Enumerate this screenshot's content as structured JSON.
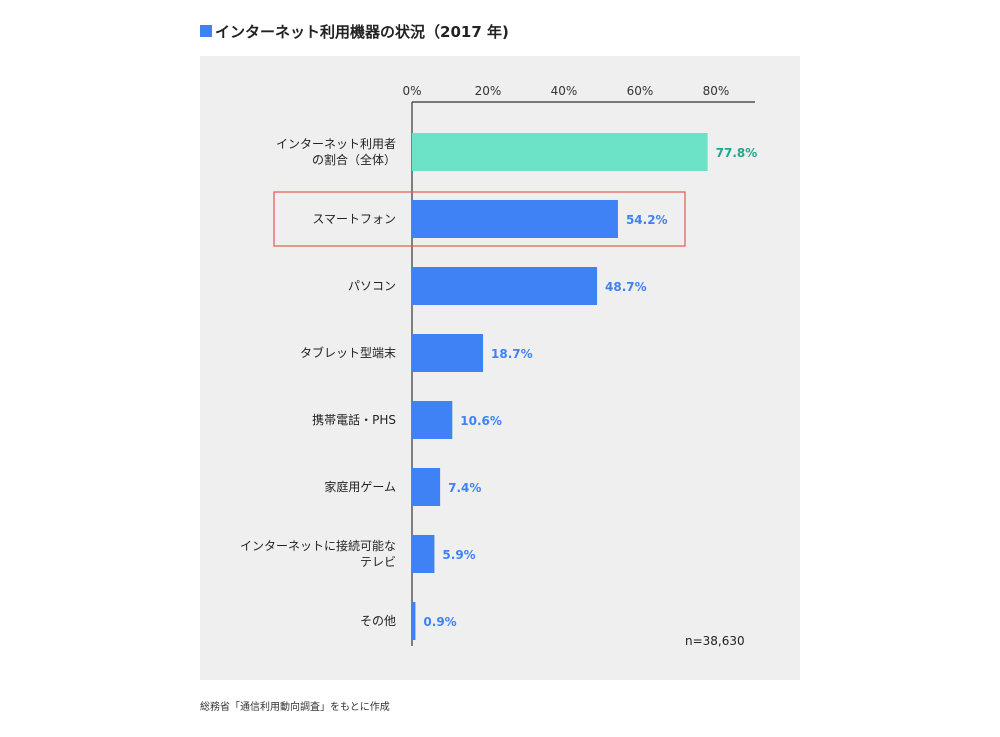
{
  "title": "インターネット利用機器の状況（2017 年)",
  "source": "総務省「通信利用動向調査」をもとに作成",
  "colors": {
    "title_square": "#3f82f5",
    "bar_default": "#3f82f5",
    "bar_highlight": "#6ce3c7",
    "label_default": "#3f82f5",
    "label_highlight": "#1fa890",
    "highlight_box": "#e05a4f",
    "panel_background": "#efefef"
  },
  "chart_data": {
    "type": "bar",
    "orientation": "horizontal",
    "categories": [
      "インターネット利用者\nの割合（全体）",
      "スマートフォン",
      "パソコン",
      "タブレット型端末",
      "携帯電話・PHS",
      "家庭用ゲーム",
      "インターネットに接続可能な\nテレビ",
      "その他"
    ],
    "values": [
      77.8,
      54.2,
      48.7,
      18.7,
      10.6,
      7.4,
      5.9,
      0.9
    ],
    "value_labels": [
      "77.8%",
      "54.2%",
      "48.7%",
      "18.7%",
      "10.6%",
      "7.4%",
      "5.9%",
      "0.9%"
    ],
    "xlim": [
      0,
      90
    ],
    "x_ticks": [
      0,
      20,
      40,
      60,
      80
    ],
    "x_tick_labels": [
      "0%",
      "20%",
      "40%",
      "60%",
      "80%"
    ],
    "x_axis_position": "top",
    "grid": false,
    "legend": "none",
    "highlighted_category": "インターネット利用者\nの割合（全体）",
    "boxed_category": "スマートフォン",
    "annotation": "n=38,630"
  }
}
